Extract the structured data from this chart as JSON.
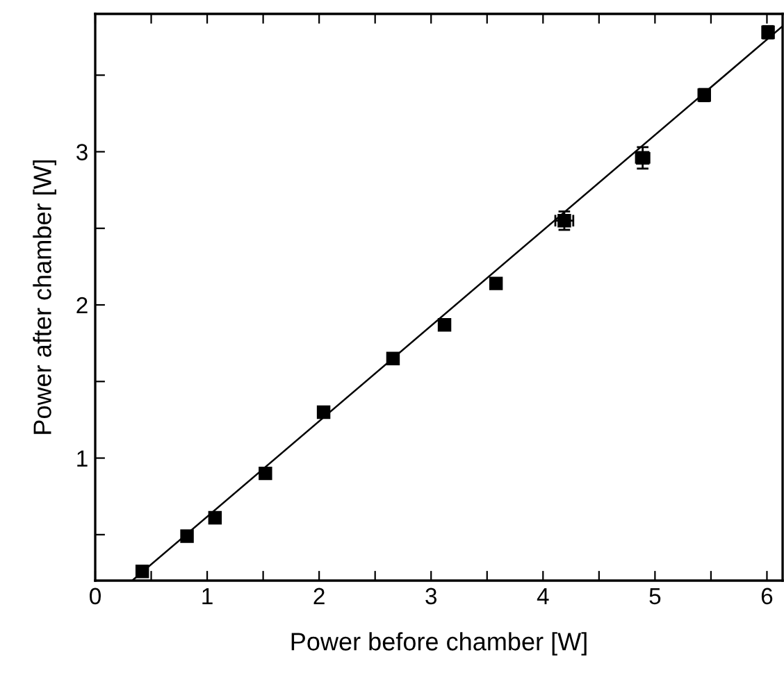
{
  "chart_data": {
    "type": "scatter",
    "xlabel": "Power before chamber [W]",
    "ylabel": "Power after chamber [W]",
    "xlim": [
      0,
      6.14
    ],
    "ylim": [
      0.2,
      3.9
    ],
    "xticks": [
      0,
      {
        "value": 0.5,
        "label": null
      },
      1,
      {
        "value": 1.5,
        "label": null
      },
      2,
      {
        "value": 2.5,
        "label": null
      },
      3,
      {
        "value": 3.5,
        "label": null
      },
      4,
      {
        "value": 4.5,
        "label": null
      },
      5,
      {
        "value": 5.5,
        "label": null
      },
      6
    ],
    "yticks": [
      {
        "value": 0.5,
        "label": null
      },
      1,
      {
        "value": 1.5,
        "label": null
      },
      2,
      {
        "value": 2.5,
        "label": null
      },
      3,
      {
        "value": 3.5,
        "label": null
      }
    ],
    "grid": false,
    "marker": "square",
    "series": [
      {
        "color": "#000000",
        "x": [
          0.42,
          0.82,
          1.07,
          1.52,
          2.04,
          2.66,
          3.12,
          3.58,
          4.19,
          4.89,
          5.44,
          6.01
        ],
        "values": [
          0.26,
          0.49,
          0.61,
          0.9,
          1.3,
          1.65,
          1.87,
          2.14,
          2.55,
          2.96,
          3.37,
          3.78
        ],
        "errors": [
          null,
          null,
          null,
          null,
          null,
          null,
          null,
          null,
          0.06,
          0.07,
          0.04,
          0.04
        ],
        "xerrors": [
          null,
          null,
          null,
          null,
          null,
          null,
          null,
          null,
          0.08,
          0.06,
          null,
          null
        ]
      },
      {
        "type": "line",
        "color": "#000000",
        "x": [
          0.33,
          6.14
        ],
        "values": [
          0.2,
          3.82
        ],
        "marker": "none",
        "line_style": "solid"
      }
    ]
  }
}
